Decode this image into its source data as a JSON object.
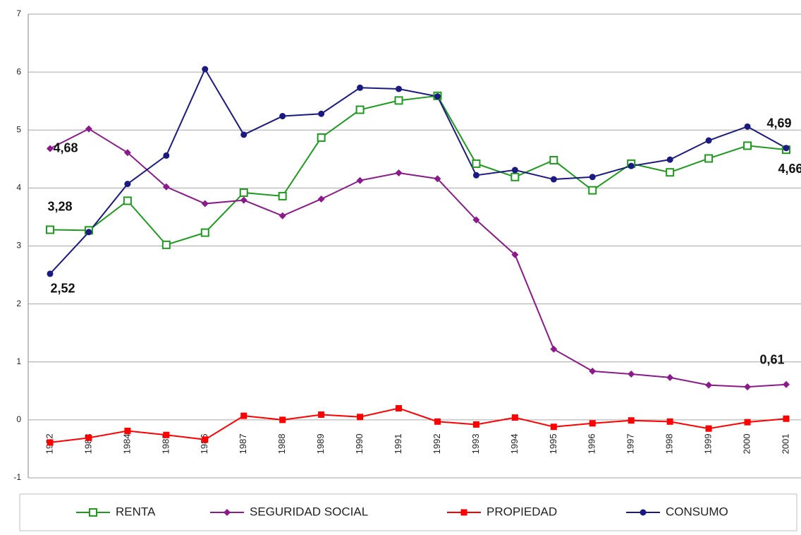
{
  "chart_data": {
    "type": "line",
    "categories": [
      "1982",
      "1983",
      "1984",
      "1985",
      "1986",
      "1987",
      "1988",
      "1989",
      "1990",
      "1991",
      "1992",
      "1993",
      "1994",
      "1995",
      "1996",
      "1997",
      "1998",
      "1999",
      "2000",
      "2001"
    ],
    "ylim": [
      -1,
      7
    ],
    "yticks": [
      -1,
      0,
      1,
      2,
      3,
      4,
      5,
      6,
      7
    ],
    "grid": true,
    "legend": "bottom",
    "series": [
      {
        "name": "RENTA",
        "color": "#1e9a1e",
        "marker": "hollow-square",
        "values": [
          3.28,
          3.27,
          3.78,
          3.02,
          3.23,
          3.92,
          3.86,
          4.87,
          5.35,
          5.51,
          5.59,
          4.42,
          4.19,
          4.48,
          3.96,
          4.42,
          4.27,
          4.51,
          4.73,
          4.66
        ],
        "value_labels": [
          "3,28",
          null,
          null,
          null,
          null,
          null,
          null,
          null,
          null,
          null,
          null,
          null,
          null,
          null,
          null,
          null,
          null,
          null,
          null,
          "4,66"
        ]
      },
      {
        "name": "SEGURIDAD SOCIAL",
        "color": "#8b1a8b",
        "marker": "diamond",
        "values": [
          4.68,
          5.02,
          4.61,
          4.02,
          3.73,
          3.79,
          3.52,
          3.81,
          4.13,
          4.26,
          4.16,
          3.45,
          2.85,
          1.22,
          0.84,
          0.79,
          0.73,
          0.6,
          0.57,
          0.61
        ],
        "value_labels": [
          "4,68",
          null,
          null,
          null,
          null,
          null,
          null,
          null,
          null,
          null,
          null,
          null,
          null,
          null,
          null,
          null,
          null,
          null,
          null,
          "0,61"
        ]
      },
      {
        "name": "PROPIEDAD",
        "color": "#ff0000",
        "marker": "square",
        "values": [
          -0.39,
          -0.31,
          -0.19,
          -0.26,
          -0.34,
          0.07,
          0.0,
          0.09,
          0.05,
          0.2,
          -0.03,
          -0.08,
          0.04,
          -0.12,
          -0.06,
          -0.01,
          -0.03,
          -0.15,
          -0.04,
          0.02
        ]
      },
      {
        "name": "CONSUMO",
        "color": "#1a1a80",
        "marker": "circle",
        "values": [
          2.52,
          3.24,
          4.07,
          4.56,
          6.05,
          4.92,
          5.24,
          5.28,
          5.73,
          5.71,
          5.58,
          4.22,
          4.31,
          4.15,
          4.19,
          4.38,
          4.49,
          4.82,
          5.06,
          4.69
        ],
        "value_labels": [
          "2,52",
          null,
          null,
          null,
          null,
          null,
          null,
          null,
          null,
          null,
          null,
          null,
          null,
          null,
          null,
          null,
          null,
          null,
          null,
          "4,69"
        ]
      }
    ]
  }
}
